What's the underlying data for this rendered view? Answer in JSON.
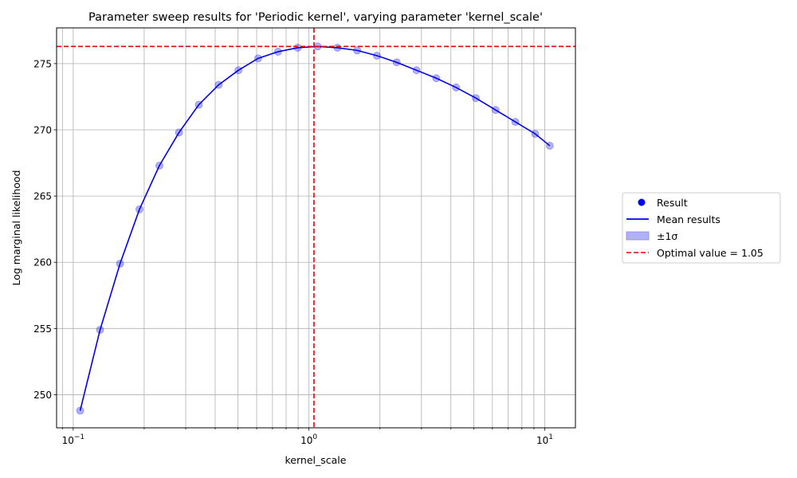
{
  "chart_data": {
    "type": "line",
    "title": "Parameter sweep results for 'Periodic kernel', varying parameter 'kernel_scale'",
    "xlabel": "kernel_scale",
    "ylabel": "Log marginal likelihood",
    "xscale": "log",
    "xlim": [
      0.085,
      13.5
    ],
    "ylim": [
      247.5,
      277.7
    ],
    "x_ticks": [
      {
        "value": 0.1,
        "base": "10",
        "exp": "−1"
      },
      {
        "value": 1,
        "base": "10",
        "exp": "0"
      },
      {
        "value": 10,
        "base": "10",
        "exp": "1"
      }
    ],
    "y_ticks": [
      250,
      255,
      260,
      265,
      270,
      275
    ],
    "grid": true,
    "legend_position": "outside-right",
    "series": [
      {
        "name": "Mean results",
        "style": "line",
        "color": "#0000ee",
        "x": [
          0.107,
          0.13,
          0.158,
          0.191,
          0.232,
          0.281,
          0.341,
          0.414,
          0.502,
          0.609,
          0.739,
          0.896,
          1.088,
          1.32,
          1.601,
          1.942,
          2.356,
          2.858,
          3.467,
          4.206,
          5.102,
          6.19,
          7.509,
          9.11,
          10.51
        ],
        "y": [
          248.8,
          254.9,
          259.9,
          264.0,
          267.3,
          269.8,
          271.9,
          273.4,
          274.5,
          275.4,
          275.9,
          276.2,
          276.3,
          276.2,
          276.0,
          275.6,
          275.1,
          274.5,
          273.9,
          273.2,
          272.4,
          271.5,
          270.6,
          269.7,
          268.8
        ]
      },
      {
        "name": "Result",
        "style": "markers",
        "color": "#0000ee",
        "x": [
          0.107,
          0.13,
          0.158,
          0.191,
          0.232,
          0.281,
          0.341,
          0.414,
          0.502,
          0.609,
          0.739,
          0.896,
          1.088,
          1.32,
          1.601,
          1.942,
          2.356,
          2.858,
          3.467,
          4.206,
          5.102,
          6.19,
          7.509,
          9.11,
          10.51
        ],
        "y": [
          248.8,
          254.9,
          259.9,
          264.0,
          267.3,
          269.8,
          271.9,
          273.4,
          274.5,
          275.4,
          275.9,
          276.2,
          276.3,
          276.2,
          276.0,
          275.6,
          275.1,
          274.5,
          273.9,
          273.2,
          272.4,
          271.5,
          270.6,
          269.7,
          268.8
        ]
      }
    ],
    "band_label": "±1σ",
    "band_color": "#b2b2f7",
    "optimal": {
      "x": 1.05,
      "y": 276.3,
      "color": "#ee0000",
      "label": "Optimal value = 1.05"
    },
    "legend": [
      {
        "key": "result",
        "label": "Result"
      },
      {
        "key": "mean",
        "label": "Mean results"
      },
      {
        "key": "band",
        "label": "±1σ"
      },
      {
        "key": "optimal",
        "label": "Optimal value = 1.05"
      }
    ]
  }
}
